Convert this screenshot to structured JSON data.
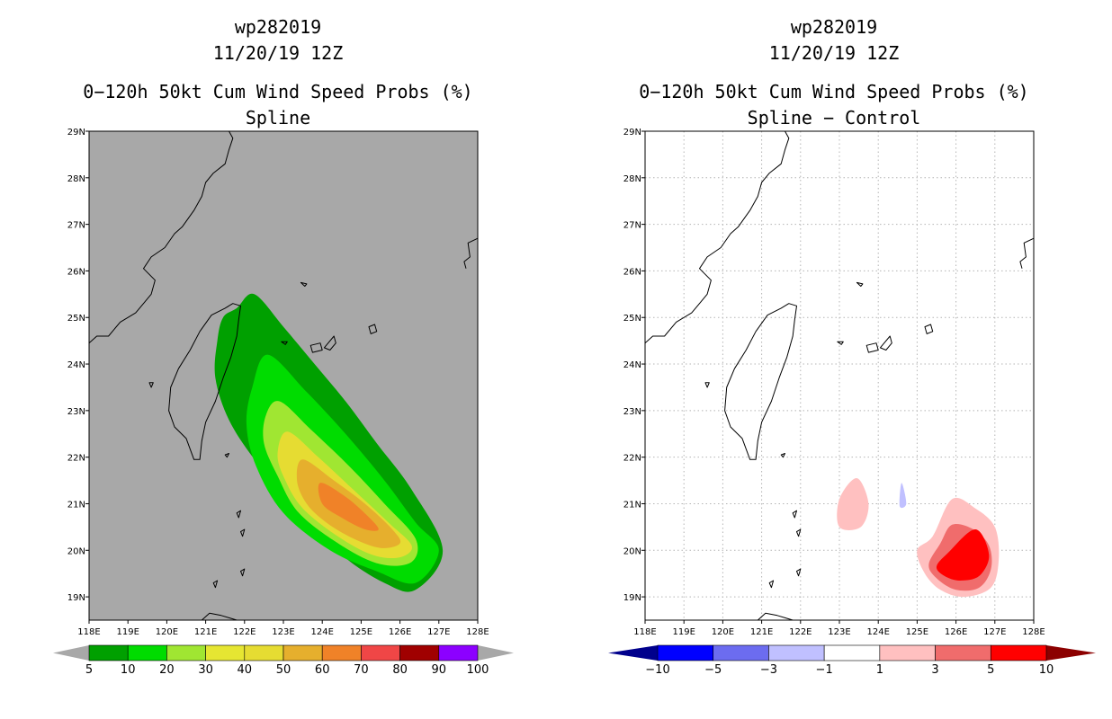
{
  "chart_data": [
    {
      "type": "heatmap",
      "storm_id": "wp282019",
      "date_label": "11/20/19 12Z",
      "title": "0−120h 50kt Cum Wind Speed Probs (%)",
      "subtitle": "Spline",
      "background": "#a8a8a8",
      "grid": false,
      "x_ticks": [
        "118E",
        "119E",
        "120E",
        "121E",
        "122E",
        "123E",
        "124E",
        "125E",
        "126E",
        "127E",
        "128E"
      ],
      "y_ticks": [
        "19N",
        "20N",
        "21N",
        "22N",
        "23N",
        "24N",
        "25N",
        "26N",
        "27N",
        "28N",
        "29N"
      ],
      "xlim": [
        118,
        128
      ],
      "ylim": [
        18.5,
        29
      ],
      "contour_levels": [
        {
          "level": 5,
          "color": "#00a000",
          "ring": [
            [
              122.25,
              25.5
            ],
            [
              123.0,
              24.8
            ],
            [
              123.8,
              24.0
            ],
            [
              124.6,
              23.2
            ],
            [
              125.4,
              22.3
            ],
            [
              126.3,
              21.3
            ],
            [
              127.1,
              20.0
            ],
            [
              126.4,
              19.15
            ],
            [
              125.6,
              19.3
            ],
            [
              124.5,
              19.9
            ],
            [
              123.3,
              20.9
            ],
            [
              122.3,
              21.9
            ],
            [
              121.6,
              22.8
            ],
            [
              121.25,
              23.7
            ],
            [
              121.3,
              24.5
            ],
            [
              121.45,
              25.0
            ],
            [
              121.8,
              25.2
            ]
          ]
        },
        {
          "level": 10,
          "color": "#00dc00",
          "ring": [
            [
              122.6,
              24.2
            ],
            [
              123.6,
              23.4
            ],
            [
              124.6,
              22.5
            ],
            [
              125.6,
              21.5
            ],
            [
              126.4,
              20.6
            ],
            [
              127.0,
              20.0
            ],
            [
              126.4,
              19.3
            ],
            [
              125.4,
              19.55
            ],
            [
              124.2,
              20.0
            ],
            [
              123.0,
              20.8
            ],
            [
              122.3,
              21.8
            ],
            [
              122.05,
              22.7
            ],
            [
              122.2,
              23.5
            ]
          ]
        },
        {
          "level": 20,
          "color": "#a0e632",
          "ring": [
            [
              122.9,
              23.2
            ],
            [
              123.7,
              22.6
            ],
            [
              124.7,
              21.8
            ],
            [
              125.6,
              21.0
            ],
            [
              126.4,
              20.25
            ],
            [
              126.3,
              19.75
            ],
            [
              125.5,
              19.7
            ],
            [
              124.5,
              20.1
            ],
            [
              123.4,
              20.8
            ],
            [
              122.85,
              21.6
            ],
            [
              122.5,
              22.3
            ],
            [
              122.55,
              22.9
            ]
          ]
        },
        {
          "level": 30,
          "color": "#e6dc32",
          "ring": [
            [
              123.1,
              22.55
            ],
            [
              123.9,
              22.0
            ],
            [
              124.8,
              21.3
            ],
            [
              125.7,
              20.6
            ],
            [
              126.3,
              20.1
            ],
            [
              126.0,
              19.85
            ],
            [
              125.3,
              19.9
            ],
            [
              124.4,
              20.3
            ],
            [
              123.5,
              20.9
            ],
            [
              123.05,
              21.5
            ],
            [
              122.85,
              22.05
            ]
          ]
        },
        {
          "level": 40,
          "color": "#e6af2d",
          "ring": [
            [
              123.5,
              21.95
            ],
            [
              124.3,
              21.5
            ],
            [
              125.1,
              21.0
            ],
            [
              125.8,
              20.45
            ],
            [
              126.0,
              20.15
            ],
            [
              125.5,
              20.05
            ],
            [
              124.8,
              20.25
            ],
            [
              124.1,
              20.6
            ],
            [
              123.6,
              21.0
            ],
            [
              123.35,
              21.5
            ]
          ]
        },
        {
          "level": 50,
          "color": "#f08228",
          "ring": [
            [
              123.95,
              21.45
            ],
            [
              124.6,
              21.15
            ],
            [
              125.15,
              20.75
            ],
            [
              125.45,
              20.45
            ],
            [
              125.1,
              20.45
            ],
            [
              124.5,
              20.7
            ],
            [
              124.0,
              21.0
            ]
          ]
        }
      ],
      "colorbar": {
        "labels": [
          "5",
          "10",
          "20",
          "30",
          "40",
          "50",
          "60",
          "70",
          "80",
          "90",
          "100"
        ],
        "colors": [
          "#00a000",
          "#00dc00",
          "#a0e632",
          "#e6e632",
          "#e6dc32",
          "#e6af2d",
          "#f08228",
          "#f04646",
          "#a00000",
          "#8c00ff"
        ],
        "under_color": "#a8a8a8",
        "over_color": "#a8a8a8"
      }
    },
    {
      "type": "heatmap",
      "storm_id": "wp282019",
      "date_label": "11/20/19 12Z",
      "title": "0−120h 50kt Cum Wind Speed Probs (%)",
      "subtitle": "Spline − Control",
      "background": "#ffffff",
      "grid": true,
      "x_ticks": [
        "118E",
        "119E",
        "120E",
        "121E",
        "122E",
        "123E",
        "124E",
        "125E",
        "126E",
        "127E",
        "128E"
      ],
      "y_ticks": [
        "19N",
        "20N",
        "21N",
        "22N",
        "23N",
        "24N",
        "25N",
        "26N",
        "27N",
        "28N",
        "29N"
      ],
      "xlim": [
        118,
        128
      ],
      "ylim": [
        18.5,
        29
      ],
      "contour_levels": [
        {
          "level": 1,
          "color": "#ffc0c0",
          "ring": [
            [
              123.0,
              21.1
            ],
            [
              123.45,
              21.55
            ],
            [
              123.75,
              21.0
            ],
            [
              123.55,
              20.5
            ],
            [
              123.0,
              20.5
            ]
          ]
        },
        {
          "level": -1,
          "color": "#c0c0ff",
          "ring": [
            [
              124.6,
              21.45
            ],
            [
              124.72,
              21.0
            ],
            [
              124.55,
              20.95
            ]
          ]
        },
        {
          "level": 1,
          "color": "#ffc0c0",
          "ring": [
            [
              125.9,
              21.1
            ],
            [
              126.5,
              20.9
            ],
            [
              127.0,
              20.5
            ],
            [
              127.1,
              19.8
            ],
            [
              126.9,
              19.2
            ],
            [
              126.2,
              19.0
            ],
            [
              125.6,
              19.15
            ],
            [
              125.2,
              19.5
            ],
            [
              125.0,
              20.0
            ],
            [
              125.4,
              20.3
            ]
          ]
        },
        {
          "level": 3,
          "color": "#f06c6c",
          "ring": [
            [
              125.9,
              20.55
            ],
            [
              126.45,
              20.45
            ],
            [
              126.85,
              20.1
            ],
            [
              126.9,
              19.6
            ],
            [
              126.6,
              19.2
            ],
            [
              126.0,
              19.15
            ],
            [
              125.5,
              19.4
            ],
            [
              125.3,
              19.7
            ],
            [
              125.6,
              20.15
            ]
          ]
        },
        {
          "level": 5,
          "color": "#ff0000",
          "ring": [
            [
              126.5,
              20.45
            ],
            [
              126.85,
              19.9
            ],
            [
              126.6,
              19.45
            ],
            [
              126.1,
              19.35
            ],
            [
              125.7,
              19.45
            ],
            [
              125.5,
              19.65
            ],
            [
              125.8,
              19.95
            ]
          ]
        }
      ],
      "colorbar": {
        "labels": [
          "−10",
          "−5",
          "−3",
          "−1",
          "1",
          "3",
          "5",
          "10"
        ],
        "colors": [
          "#0000ff",
          "#6c6cf0",
          "#c0c0ff",
          "#ffffff",
          "#ffc0c0",
          "#f06c6c",
          "#ff0000"
        ],
        "under_color": "#00008c",
        "over_color": "#8c0000"
      }
    }
  ]
}
